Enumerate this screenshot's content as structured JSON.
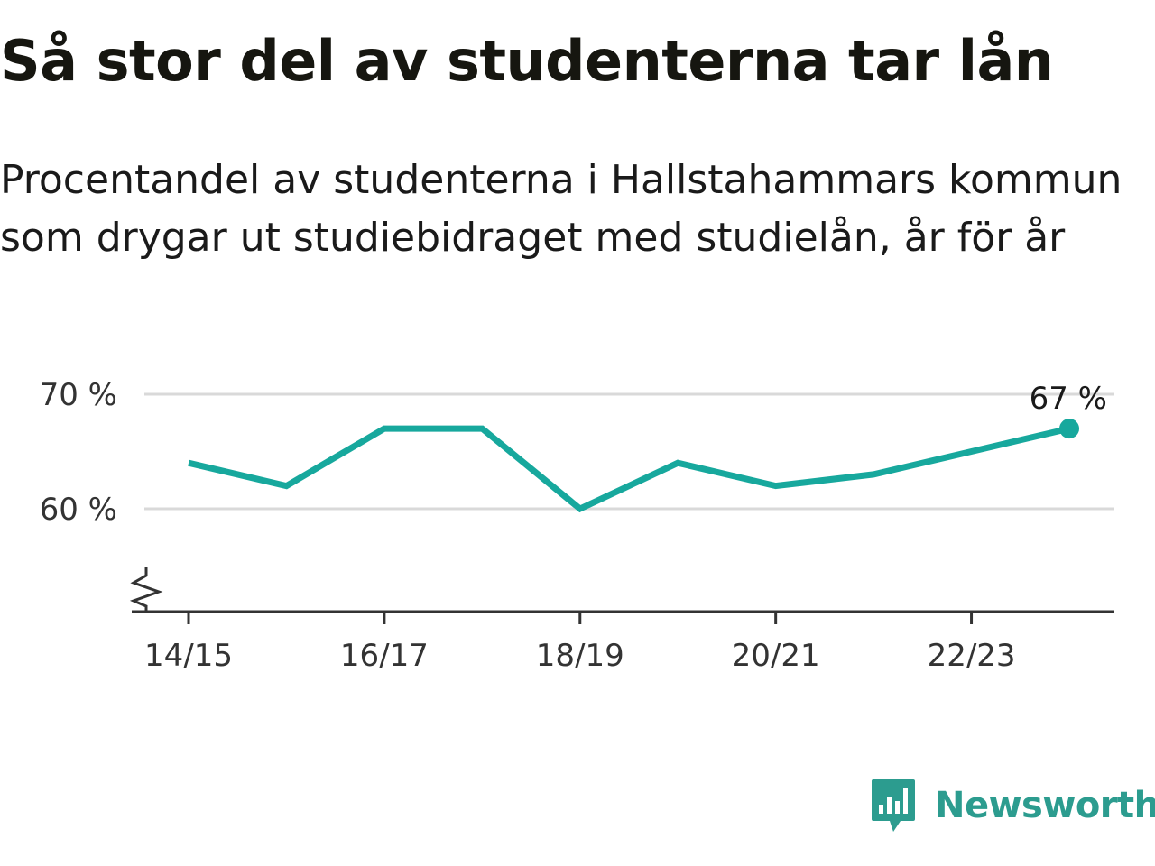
{
  "title": "Så stor del av studenterna tar lån",
  "subtitle": "Procentandel av studenterna i Hallstahammars kommun som drygar ut studiebidraget med studielån, år för år",
  "colors": {
    "line": "#17a89d",
    "grid": "#d9d9d9",
    "axis": "#333333",
    "logo": "#2c9c8f"
  },
  "icons": {
    "logo": "newsworthy-logo-icon",
    "axis_break": "axis-break-icon"
  },
  "chart_data": {
    "type": "line",
    "title": "Så stor del av studenterna tar lån",
    "subtitle": "Procentandel av studenterna i Hallstahammars kommun som drygar ut studiebidraget med studielån, år för år",
    "x": [
      "14/15",
      "15/16",
      "16/17",
      "17/18",
      "18/19",
      "19/20",
      "20/21",
      "21/22",
      "22/23",
      "23/24"
    ],
    "series": [
      {
        "values": [
          64,
          62,
          67,
          67,
          60,
          64,
          62,
          63,
          65,
          67
        ]
      }
    ],
    "x_tick_labels": [
      "14/15",
      "16/17",
      "18/19",
      "20/21",
      "22/23"
    ],
    "y_ticks": [
      60,
      70
    ],
    "y_tick_labels": [
      "60 %",
      "70 %"
    ],
    "ylim": [
      51,
      70
    ],
    "grid": true,
    "y_axis_break": true,
    "end_label": "67 %",
    "xlabel": "",
    "ylabel": ""
  },
  "logo": {
    "text": "Newsworthy"
  }
}
